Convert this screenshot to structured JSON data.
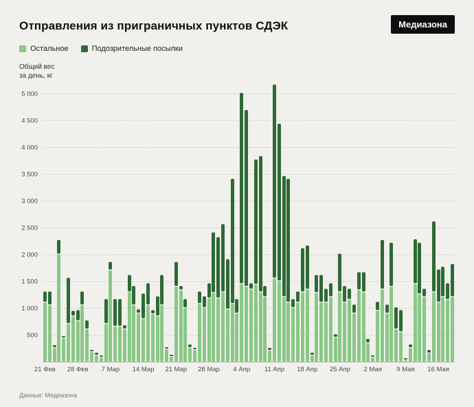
{
  "header": {
    "title": "Отправления из приграничных пунктов СДЭК",
    "logo": "Медиазона"
  },
  "footer": {
    "source": "Данные: Медиазона"
  },
  "chart_data": {
    "type": "bar",
    "stacked": true,
    "title": "Отправления из приграничных пунктов СДЭК",
    "ylabel": "Общий вес за день, кг",
    "ylabel_lines": [
      "Общий вес",
      "за день, кг"
    ],
    "ylim": [
      0,
      5200
    ],
    "grid": "horizontal-dotted",
    "legend_position": "top-left",
    "background_color": "#f1f0ec",
    "y_ticks": [
      {
        "value": 500,
        "label": "500"
      },
      {
        "value": 1000,
        "label": "1 000"
      },
      {
        "value": 1500,
        "label": "1 500"
      },
      {
        "value": 2000,
        "label": "2 000"
      },
      {
        "value": 2500,
        "label": "2 500"
      },
      {
        "value": 3000,
        "label": "3 000"
      },
      {
        "value": 3500,
        "label": "3 500"
      },
      {
        "value": 4000,
        "label": "4 000"
      },
      {
        "value": 4500,
        "label": "4 500"
      },
      {
        "value": 5000,
        "label": "5 000"
      }
    ],
    "x_ticks": [
      {
        "index": 0,
        "label": "21 Фев"
      },
      {
        "index": 7,
        "label": "28 Фев"
      },
      {
        "index": 14,
        "label": "7 Мар"
      },
      {
        "index": 21,
        "label": "14 Мар"
      },
      {
        "index": 28,
        "label": "21 Мар"
      },
      {
        "index": 35,
        "label": "28 Мар"
      },
      {
        "index": 42,
        "label": "4 Апр"
      },
      {
        "index": 49,
        "label": "11 Апр"
      },
      {
        "index": 56,
        "label": "18 Апр"
      },
      {
        "index": 63,
        "label": "25 Апр"
      },
      {
        "index": 70,
        "label": "2 Мая"
      },
      {
        "index": 77,
        "label": "9 Мая"
      },
      {
        "index": 84,
        "label": "16 Мая"
      }
    ],
    "series": [
      {
        "name": "Остальное",
        "color": "#8ac787",
        "values": [
          1100,
          1050,
          250,
          2000,
          430,
          700,
          850,
          750,
          1050,
          600,
          180,
          120,
          80,
          700,
          1700,
          650,
          650,
          600,
          1300,
          1050,
          900,
          800,
          1050,
          880,
          850,
          1050,
          230,
          90,
          1400,
          1330,
          1000,
          250,
          220,
          1080,
          1000,
          1180,
          1280,
          1180,
          1300,
          980,
          1080,
          900,
          1450,
          1400,
          1350,
          1430,
          1300,
          1200,
          200,
          1550,
          1500,
          1200,
          1100,
          1000,
          1100,
          1300,
          1350,
          120,
          1280,
          1100,
          1100,
          1200,
          450,
          1300,
          1100,
          1150,
          900,
          1330,
          1300,
          350,
          80,
          950,
          1350,
          900,
          1400,
          600,
          550,
          30,
          250,
          1450,
          1250,
          1200,
          150,
          1300,
          1100,
          1200,
          1150,
          1200
        ]
      },
      {
        "name": "Подозрительные посылки",
        "color": "#2d6a34",
        "values": [
          200,
          250,
          50,
          250,
          30,
          850,
          80,
          200,
          250,
          150,
          30,
          30,
          20,
          450,
          150,
          500,
          500,
          60,
          300,
          350,
          60,
          450,
          400,
          70,
          350,
          550,
          30,
          20,
          450,
          70,
          150,
          60,
          30,
          220,
          200,
          270,
          1120,
          1120,
          1250,
          920,
          2320,
          250,
          3550,
          3270,
          100,
          2320,
          2520,
          200,
          50,
          3600,
          2920,
          2250,
          2300,
          150,
          200,
          800,
          800,
          30,
          320,
          500,
          250,
          250,
          50,
          700,
          300,
          200,
          150,
          320,
          350,
          60,
          20,
          150,
          900,
          150,
          800,
          400,
          400,
          20,
          60,
          820,
          950,
          150,
          50,
          1300,
          600,
          550,
          300,
          600
        ]
      }
    ]
  }
}
